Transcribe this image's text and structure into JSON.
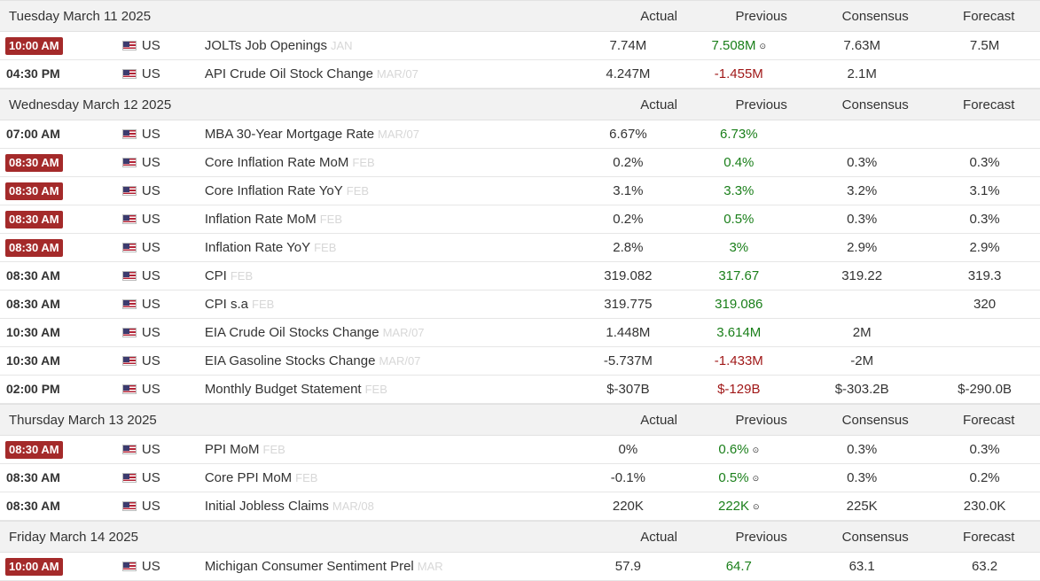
{
  "sections": [
    {
      "date": "Tuesday March 11 2025",
      "columns": {
        "actual": "Actual",
        "previous": "Previous",
        "consensus": "Consensus",
        "forecast": "Forecast"
      },
      "rows": [
        {
          "time": "10:00 AM",
          "highlight": true,
          "country": "US",
          "event": "JOLTs Job Openings",
          "ref": "JAN",
          "actual": "7.74M",
          "previous": "7.508M",
          "prev_dir": "up",
          "revised": true,
          "consensus": "7.63M",
          "forecast": "7.5M"
        },
        {
          "time": "04:30 PM",
          "highlight": false,
          "country": "US",
          "event": "API Crude Oil Stock Change",
          "ref": "MAR/07",
          "actual": "4.247M",
          "previous": "-1.455M",
          "prev_dir": "down",
          "revised": false,
          "consensus": "2.1M",
          "forecast": ""
        }
      ]
    },
    {
      "date": "Wednesday March 12 2025",
      "columns": {
        "actual": "Actual",
        "previous": "Previous",
        "consensus": "Consensus",
        "forecast": "Forecast"
      },
      "rows": [
        {
          "time": "07:00 AM",
          "highlight": false,
          "country": "US",
          "event": "MBA 30-Year Mortgage Rate",
          "ref": "MAR/07",
          "actual": "6.67%",
          "previous": "6.73%",
          "prev_dir": "up",
          "revised": false,
          "consensus": "",
          "forecast": ""
        },
        {
          "time": "08:30 AM",
          "highlight": true,
          "country": "US",
          "event": "Core Inflation Rate MoM",
          "ref": "FEB",
          "actual": "0.2%",
          "previous": "0.4%",
          "prev_dir": "up",
          "revised": false,
          "consensus": "0.3%",
          "forecast": "0.3%"
        },
        {
          "time": "08:30 AM",
          "highlight": true,
          "country": "US",
          "event": "Core Inflation Rate YoY",
          "ref": "FEB",
          "actual": "3.1%",
          "previous": "3.3%",
          "prev_dir": "up",
          "revised": false,
          "consensus": "3.2%",
          "forecast": "3.1%"
        },
        {
          "time": "08:30 AM",
          "highlight": true,
          "country": "US",
          "event": "Inflation Rate MoM",
          "ref": "FEB",
          "actual": "0.2%",
          "previous": "0.5%",
          "prev_dir": "up",
          "revised": false,
          "consensus": "0.3%",
          "forecast": "0.3%"
        },
        {
          "time": "08:30 AM",
          "highlight": true,
          "country": "US",
          "event": "Inflation Rate YoY",
          "ref": "FEB",
          "actual": "2.8%",
          "previous": "3%",
          "prev_dir": "up",
          "revised": false,
          "consensus": "2.9%",
          "forecast": "2.9%"
        },
        {
          "time": "08:30 AM",
          "highlight": false,
          "country": "US",
          "event": "CPI",
          "ref": "FEB",
          "actual": "319.082",
          "previous": "317.67",
          "prev_dir": "up",
          "revised": false,
          "consensus": "319.22",
          "forecast": "319.3"
        },
        {
          "time": "08:30 AM",
          "highlight": false,
          "country": "US",
          "event": "CPI s.a",
          "ref": "FEB",
          "actual": "319.775",
          "previous": "319.086",
          "prev_dir": "up",
          "revised": false,
          "consensus": "",
          "forecast": "320"
        },
        {
          "time": "10:30 AM",
          "highlight": false,
          "country": "US",
          "event": "EIA Crude Oil Stocks Change",
          "ref": "MAR/07",
          "actual": "1.448M",
          "previous": "3.614M",
          "prev_dir": "up",
          "revised": false,
          "consensus": "2M",
          "forecast": ""
        },
        {
          "time": "10:30 AM",
          "highlight": false,
          "country": "US",
          "event": "EIA Gasoline Stocks Change",
          "ref": "MAR/07",
          "actual": "-5.737M",
          "previous": "-1.433M",
          "prev_dir": "down",
          "revised": false,
          "consensus": "-2M",
          "forecast": ""
        },
        {
          "time": "02:00 PM",
          "highlight": false,
          "country": "US",
          "event": "Monthly Budget Statement",
          "ref": "FEB",
          "actual": "$-307B",
          "previous": "$-129B",
          "prev_dir": "down",
          "revised": false,
          "consensus": "$-303.2B",
          "forecast": "$-290.0B"
        }
      ]
    },
    {
      "date": "Thursday March 13 2025",
      "columns": {
        "actual": "Actual",
        "previous": "Previous",
        "consensus": "Consensus",
        "forecast": "Forecast"
      },
      "rows": [
        {
          "time": "08:30 AM",
          "highlight": true,
          "country": "US",
          "event": "PPI MoM",
          "ref": "FEB",
          "actual": "0%",
          "previous": "0.6%",
          "prev_dir": "up",
          "revised": true,
          "consensus": "0.3%",
          "forecast": "0.3%"
        },
        {
          "time": "08:30 AM",
          "highlight": false,
          "country": "US",
          "event": "Core PPI MoM",
          "ref": "FEB",
          "actual": "-0.1%",
          "previous": "0.5%",
          "prev_dir": "up",
          "revised": true,
          "consensus": "0.3%",
          "forecast": "0.2%"
        },
        {
          "time": "08:30 AM",
          "highlight": false,
          "country": "US",
          "event": "Initial Jobless Claims",
          "ref": "MAR/08",
          "actual": "220K",
          "previous": "222K",
          "prev_dir": "up",
          "revised": true,
          "consensus": "225K",
          "forecast": "230.0K"
        }
      ]
    },
    {
      "date": "Friday March 14 2025",
      "columns": {
        "actual": "Actual",
        "previous": "Previous",
        "consensus": "Consensus",
        "forecast": "Forecast"
      },
      "rows": [
        {
          "time": "10:00 AM",
          "highlight": true,
          "country": "US",
          "event": "Michigan Consumer Sentiment Prel",
          "ref": "MAR",
          "actual": "57.9",
          "previous": "64.7",
          "prev_dir": "up",
          "revised": false,
          "consensus": "63.1",
          "forecast": "63.2"
        }
      ]
    }
  ],
  "icons": {
    "flag": "us-flag-icon",
    "revised": "revised-circle-icon",
    "revised_glyph": "⊙"
  },
  "colors": {
    "highlight_badge": "#a42a2a",
    "previous_up": "#1a7f1a",
    "previous_down": "#a01818",
    "ref_text": "#d7d7d7"
  }
}
